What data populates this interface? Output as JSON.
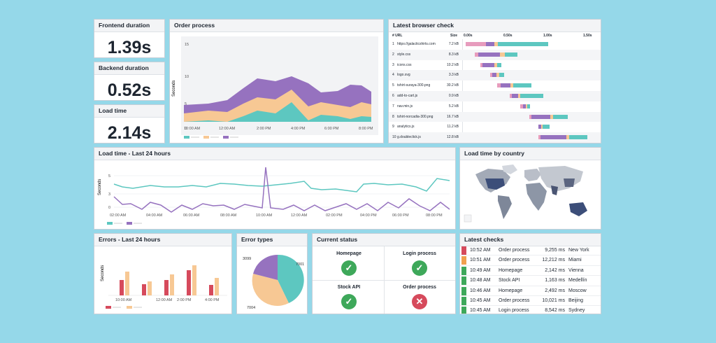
{
  "colors": {
    "teal": "#5dc7c0",
    "orange": "#f7c894",
    "purple": "#9672bf",
    "red": "#d64a5c",
    "pink": "#e79cbd",
    "green": "#3ea85a",
    "amber": "#f0a04e",
    "bg": "#95d8e9"
  },
  "kpis": [
    {
      "title": "Frontend duration",
      "value": "1.39s"
    },
    {
      "title": "Backend duration",
      "value": "0.52s"
    },
    {
      "title": "Load time",
      "value": "2.14s"
    }
  ],
  "order_process": {
    "title": "Order process",
    "ylabel": "Seconds",
    "yticks": [
      "15",
      "10",
      "5",
      "0"
    ],
    "xticks": [
      "10:00 AM",
      "12:00 AM",
      "2:00 PM",
      "4:00 PM",
      "6:00 PM",
      "8:00 PM"
    ]
  },
  "browser_check": {
    "title": "Latest browser check",
    "headers": {
      "url": "# URL",
      "size": "Size"
    },
    "ticks": [
      "0.00s",
      "0.50s",
      "1.00s",
      "1.50s"
    ],
    "rows": [
      {
        "idx": "1",
        "url": "https://galacticshirts.com",
        "size": "7.2 kB"
      },
      {
        "idx": "2",
        "url": "style.css",
        "size": "8.3 kB"
      },
      {
        "idx": "3",
        "url": "icons.css",
        "size": "10.2 kB"
      },
      {
        "idx": "4",
        "url": "logo.svg",
        "size": "3.3 kB"
      },
      {
        "idx": "5",
        "url": "tshirt-suraya-300.png",
        "size": "30.2 kB"
      },
      {
        "idx": "6",
        "url": "add-to-cart.js",
        "size": "0.9 kB"
      },
      {
        "idx": "7",
        "url": "nav.min.js",
        "size": "5.2 kB"
      },
      {
        "idx": "8",
        "url": "tshirt-norcadia-300.png",
        "size": "16.7 kB"
      },
      {
        "idx": "9",
        "url": "analytics.js",
        "size": "11.2 kB"
      },
      {
        "idx": "10",
        "url": "g.doubleclick.js",
        "size": "12.8 kB"
      }
    ]
  },
  "load_time": {
    "title": "Load time - Last 24 hours",
    "ylabel": "Seconds",
    "yticks": [
      "5",
      "3",
      "0"
    ],
    "xticks": [
      "02:00 AM",
      "04:00 AM",
      "06:00 AM",
      "08:00 AM",
      "10:00 AM",
      "12:00 AM",
      "02:00 PM",
      "04:00 PM",
      "06:00 PM",
      "08:00 PM"
    ]
  },
  "country": {
    "title": "Load time by country"
  },
  "errors": {
    "title": "Errors - Last 24 hours",
    "ylabel": "Seconds",
    "xticks": [
      "10:00 AM",
      "12:00 AM",
      "2:00 PM",
      "4:00 PM"
    ]
  },
  "error_types": {
    "title": "Error types",
    "labels": [
      "3099",
      "7001",
      "7004"
    ]
  },
  "current_status": {
    "title": "Current status",
    "items": [
      {
        "label": "Homepage",
        "ok": true
      },
      {
        "label": "Login process",
        "ok": true
      },
      {
        "label": "Stock API",
        "ok": true
      },
      {
        "label": "Order process",
        "ok": false
      }
    ]
  },
  "latest_checks": {
    "title": "Latest checks",
    "rows": [
      {
        "time": "10:52 AM",
        "check": "Order process",
        "ms": "9,255 ms",
        "city": "New York",
        "status": "error"
      },
      {
        "time": "10:51 AM",
        "check": "Order process",
        "ms": "12,212 ms",
        "city": "Miami",
        "status": "warn"
      },
      {
        "time": "10:49 AM",
        "check": "Homepage",
        "ms": "2,142 ms",
        "city": "Vienna",
        "status": "ok"
      },
      {
        "time": "10:48 AM",
        "check": "Stock API",
        "ms": "1,163 ms",
        "city": "Medellín",
        "status": "ok"
      },
      {
        "time": "10:46 AM",
        "check": "Homepage",
        "ms": "2,492 ms",
        "city": "Moscow",
        "status": "ok"
      },
      {
        "time": "10:45 AM",
        "check": "Order process",
        "ms": "10,021 ms",
        "city": "Beijing",
        "status": "ok"
      },
      {
        "time": "10:45 AM",
        "check": "Login process",
        "ms": "8,542 ms",
        "city": "Sydney",
        "status": "ok"
      }
    ]
  }
}
